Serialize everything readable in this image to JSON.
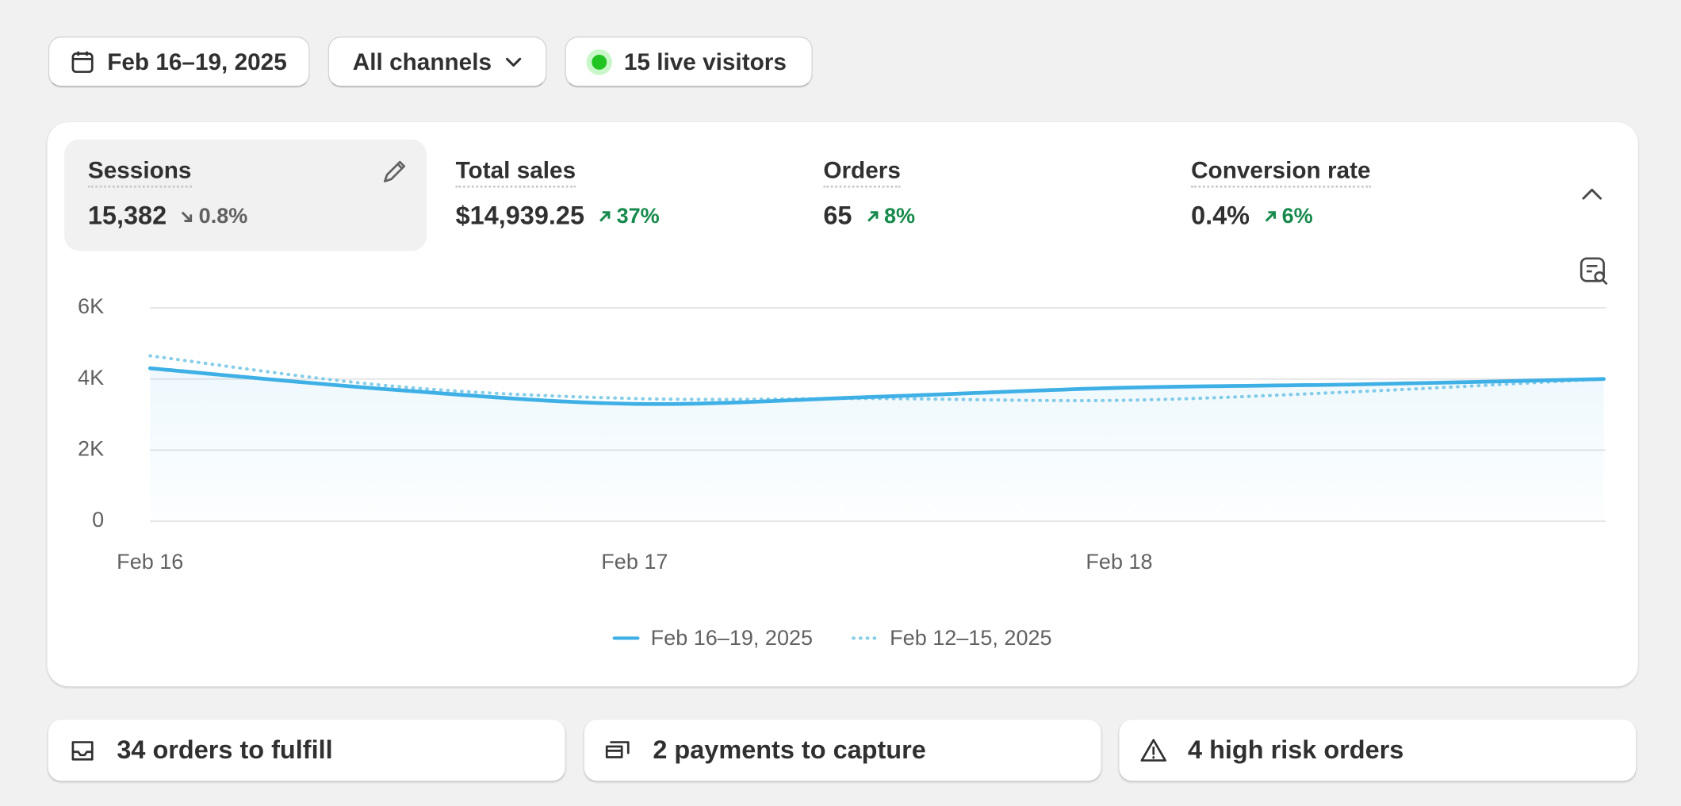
{
  "toolbar": {
    "date_range": "Feb 16–19, 2025",
    "channel": "All channels",
    "live_visitors": "15 live visitors"
  },
  "metrics": [
    {
      "label": "Sessions",
      "value": "15,382",
      "change": "0.8%",
      "direction": "down",
      "selected": true
    },
    {
      "label": "Total sales",
      "value": "$14,939.25",
      "change": "37%",
      "direction": "up",
      "selected": false
    },
    {
      "label": "Orders",
      "value": "65",
      "change": "8%",
      "direction": "up",
      "selected": false
    },
    {
      "label": "Conversion rate",
      "value": "0.4%",
      "change": "6%",
      "direction": "up",
      "selected": false
    }
  ],
  "chart_data": {
    "type": "line",
    "categories": [
      "Feb 16",
      null,
      "Feb 17",
      null,
      "Feb 18",
      null,
      null
    ],
    "series": [
      {
        "name": "Feb 16–19, 2025",
        "color": "#3fb0e6",
        "line_style": "solid",
        "fill_area": true,
        "values": [
          4300,
          3700,
          3300,
          3500,
          3750,
          3850,
          4000
        ]
      },
      {
        "name": "Feb 12–15, 2025",
        "color": "#86cde8",
        "line_style": "dotted",
        "fill_area": false,
        "values": [
          4650,
          3800,
          3450,
          3450,
          3400,
          3650,
          4000
        ]
      }
    ],
    "ylim": [
      0,
      6000
    ],
    "yticks": [
      {
        "value": 0,
        "label": "0"
      },
      {
        "value": 2000,
        "label": "2K"
      },
      {
        "value": 4000,
        "label": "4K"
      },
      {
        "value": 6000,
        "label": "6K"
      }
    ],
    "grid": true
  },
  "tasks": [
    "34 orders to fulfill",
    "2 payments to capture",
    "4 high risk orders"
  ]
}
